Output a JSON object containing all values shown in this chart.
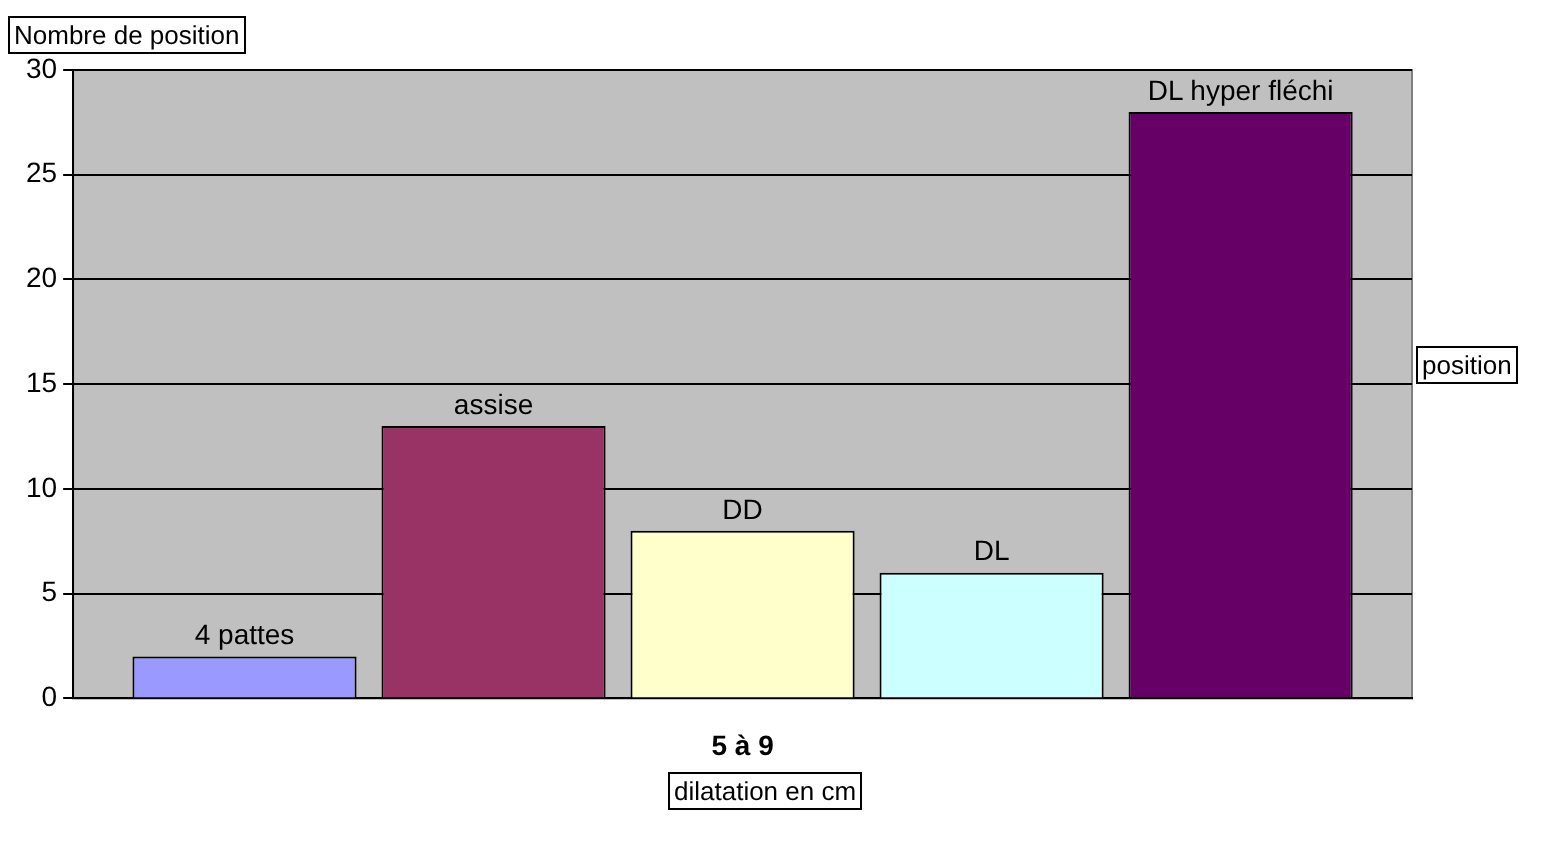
{
  "chart_data": {
    "type": "bar",
    "xlabel": "dilatation en cm",
    "ylabel": "Nombre de position",
    "legend_title": "position",
    "legend": "right",
    "categories": [
      "5 à 9"
    ],
    "series": [
      {
        "name": "4 pattes",
        "color": "#9999ff",
        "values": [
          2
        ]
      },
      {
        "name": "assise",
        "color": "#993366",
        "values": [
          13
        ]
      },
      {
        "name": "DD",
        "color": "#ffffcc",
        "values": [
          8
        ]
      },
      {
        "name": "DL",
        "color": "#ccffff",
        "values": [
          6
        ]
      },
      {
        "name": "DL hyper fléchi",
        "color": "#660066",
        "values": [
          28
        ]
      }
    ],
    "ylim": [
      0,
      30
    ],
    "yticks": [
      0,
      5,
      10,
      15,
      20,
      25,
      30
    ],
    "grid": "y"
  }
}
